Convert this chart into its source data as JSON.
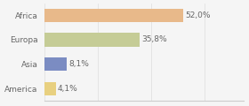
{
  "categories": [
    "Africa",
    "Europa",
    "Asia",
    "America"
  ],
  "values": [
    52.0,
    35.8,
    8.1,
    4.1
  ],
  "labels": [
    "52,0%",
    "35,8%",
    "8,1%",
    "4,1%"
  ],
  "colors": [
    "#e8b98a",
    "#c5cc96",
    "#7b8cc2",
    "#e8d080"
  ],
  "xlim": [
    0,
    75
  ],
  "background_color": "#f5f5f5",
  "bar_height": 0.55,
  "label_fontsize": 6.5,
  "tick_fontsize": 6.5
}
